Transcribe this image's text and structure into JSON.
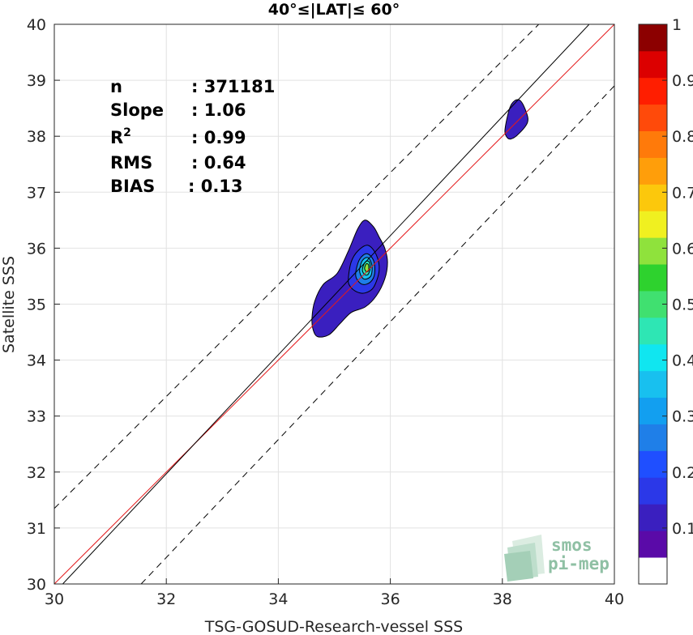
{
  "chart_data": {
    "type": "contour",
    "title": "40°≤|LAT|≤ 60°",
    "xlabel": "TSG-GOSUD-Research-vessel SSS",
    "ylabel": "Satellite SSS",
    "xlim": [
      30,
      40
    ],
    "ylim": [
      30,
      40
    ],
    "xticks": [
      "30",
      "32",
      "34",
      "36",
      "38",
      "40"
    ],
    "yticks": [
      "30",
      "31",
      "32",
      "33",
      "34",
      "35",
      "36",
      "37",
      "38",
      "39",
      "40"
    ],
    "grid": true,
    "stats": [
      {
        "label": "n",
        "value": ": 371181"
      },
      {
        "label": "Slope",
        "value": ": 1.06"
      },
      {
        "label": "R",
        "sup": "2",
        "value": ": 0.99"
      },
      {
        "label": "RMS",
        "value": ": 0.64"
      },
      {
        "label": "BIAS",
        "value": ": 0.13"
      }
    ],
    "reference_lines": [
      {
        "name": "one-to-one",
        "color": "#e41a1c",
        "points": [
          [
            30,
            30
          ],
          [
            40,
            40
          ]
        ]
      },
      {
        "name": "regression",
        "color": "#000000",
        "points": [
          [
            30.15,
            30
          ],
          [
            39.55,
            40
          ]
        ]
      },
      {
        "name": "upper-bound",
        "color": "#000000",
        "dashed": true,
        "points": [
          [
            30,
            31.35
          ],
          [
            38.65,
            40
          ]
        ]
      },
      {
        "name": "lower-bound",
        "color": "#000000",
        "dashed": true,
        "points": [
          [
            31.55,
            30
          ],
          [
            40,
            38.9
          ]
        ]
      }
    ],
    "contours": [
      {
        "level": 0.05,
        "color": "#3a1fbf",
        "points": [
          [
            34.62,
            34.55
          ],
          [
            34.7,
            34.42
          ],
          [
            34.9,
            34.45
          ],
          [
            35.1,
            34.65
          ],
          [
            35.3,
            34.85
          ],
          [
            35.55,
            34.95
          ],
          [
            35.75,
            35.15
          ],
          [
            35.9,
            35.45
          ],
          [
            35.95,
            35.75
          ],
          [
            35.9,
            36.0
          ],
          [
            35.8,
            36.2
          ],
          [
            35.7,
            36.38
          ],
          [
            35.55,
            36.5
          ],
          [
            35.42,
            36.35
          ],
          [
            35.25,
            35.95
          ],
          [
            35.05,
            35.55
          ],
          [
            34.8,
            35.35
          ],
          [
            34.65,
            35.05
          ],
          [
            34.6,
            34.75
          ]
        ]
      },
      {
        "level": 0.05,
        "color": "#3a1fbf",
        "points": [
          [
            38.05,
            38.15
          ],
          [
            38.15,
            38.55
          ],
          [
            38.3,
            38.65
          ],
          [
            38.42,
            38.45
          ],
          [
            38.45,
            38.25
          ],
          [
            38.3,
            38.05
          ],
          [
            38.15,
            37.95
          ],
          [
            38.07,
            38.0
          ]
        ]
      },
      {
        "level": 0.15,
        "color": "#2b38e8",
        "points": [
          [
            35.25,
            35.45
          ],
          [
            35.3,
            35.75
          ],
          [
            35.42,
            35.95
          ],
          [
            35.6,
            36.05
          ],
          [
            35.75,
            35.88
          ],
          [
            35.8,
            35.6
          ],
          [
            35.7,
            35.3
          ],
          [
            35.55,
            35.2
          ],
          [
            35.4,
            35.22
          ],
          [
            35.28,
            35.32
          ]
        ]
      },
      {
        "level": 0.25,
        "color": "#1f7fe8",
        "points": [
          [
            35.38,
            35.55
          ],
          [
            35.45,
            35.8
          ],
          [
            35.58,
            35.9
          ],
          [
            35.7,
            35.78
          ],
          [
            35.72,
            35.55
          ],
          [
            35.65,
            35.4
          ],
          [
            35.52,
            35.35
          ],
          [
            35.42,
            35.42
          ]
        ]
      },
      {
        "level": 0.35,
        "color": "#18c0ef",
        "points": [
          [
            35.45,
            35.6
          ],
          [
            35.5,
            35.78
          ],
          [
            35.6,
            35.83
          ],
          [
            35.67,
            35.7
          ],
          [
            35.66,
            35.52
          ],
          [
            35.58,
            35.45
          ],
          [
            35.5,
            35.47
          ]
        ]
      },
      {
        "level": 0.45,
        "color": "#2ee6b4",
        "points": [
          [
            35.5,
            35.62
          ],
          [
            35.55,
            35.75
          ],
          [
            35.62,
            35.76
          ],
          [
            35.64,
            35.64
          ],
          [
            35.6,
            35.53
          ],
          [
            35.54,
            35.53
          ]
        ]
      },
      {
        "level": 0.55,
        "color": "#8fe23c",
        "points": [
          [
            35.54,
            35.64
          ],
          [
            35.57,
            35.72
          ],
          [
            35.61,
            35.7
          ],
          [
            35.61,
            35.6
          ],
          [
            35.57,
            35.58
          ]
        ]
      }
    ],
    "colorbar": {
      "ticks": [
        "0.1",
        "0.2",
        "0.3",
        "0.4",
        "0.5",
        "0.6",
        "0.7",
        "0.8",
        "0.9",
        "1"
      ],
      "tick_values": [
        0.1,
        0.2,
        0.3,
        0.4,
        0.5,
        0.6,
        0.7,
        0.8,
        0.9,
        1.0
      ],
      "range": [
        0,
        1
      ],
      "bands": [
        "#ffffff",
        "#5a0aa8",
        "#3a1fbf",
        "#2b38e8",
        "#1f4fff",
        "#1f7fe8",
        "#129ff0",
        "#18c0ef",
        "#10e6f0",
        "#2ee6b4",
        "#40e070",
        "#2ed22e",
        "#8fe23c",
        "#f0f020",
        "#fcc80c",
        "#ff9e0a",
        "#ff7a0a",
        "#ff4a0a",
        "#ff1e00",
        "#dc0000",
        "#8c0000"
      ]
    }
  },
  "watermark": {
    "line1": "smos",
    "line2": "pi-mep"
  }
}
